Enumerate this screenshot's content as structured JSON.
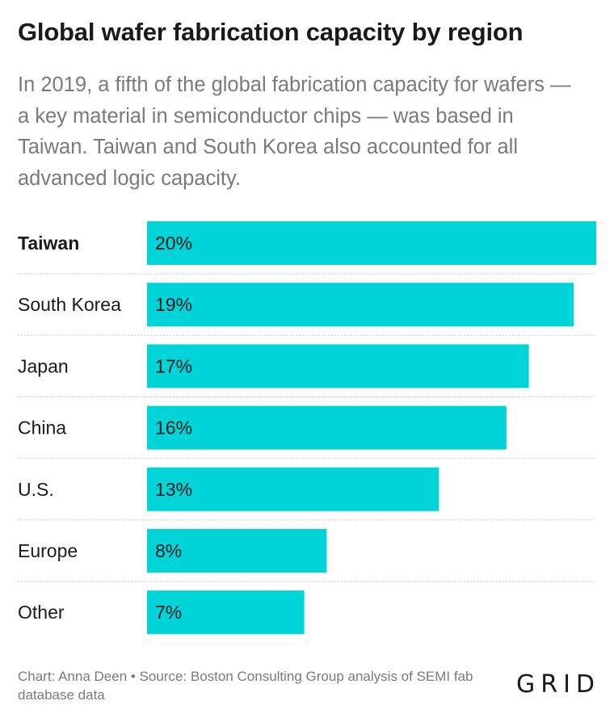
{
  "header": {
    "title": "Global wafer fabrication capacity by region",
    "subtitle": "In 2019, a fifth of the global fabrication capacity for wafers — a key material in semiconductor chips — was based in Taiwan. Taiwan and South Korea also accounted for all advanced logic capacity."
  },
  "chart_data": {
    "type": "bar",
    "orientation": "horizontal",
    "categories": [
      "Taiwan",
      "South Korea",
      "Japan",
      "China",
      "U.S.",
      "Europe",
      "Other"
    ],
    "values": [
      20,
      19,
      17,
      16,
      13,
      8,
      7
    ],
    "value_labels": [
      "20%",
      "19%",
      "17%",
      "16%",
      "13%",
      "8%",
      "7%"
    ],
    "unit": "%",
    "highlight_category": "Taiwan",
    "xlim": [
      0,
      20
    ],
    "grid": false,
    "legend": "none",
    "colors": {
      "bar": "#00d4d8",
      "divider": "#c8c8c8"
    }
  },
  "footer": {
    "credit": "Chart: Anna Deen • Source: Boston Consulting Group analysis of SEMI fab database data",
    "logo_text": "GRID"
  }
}
